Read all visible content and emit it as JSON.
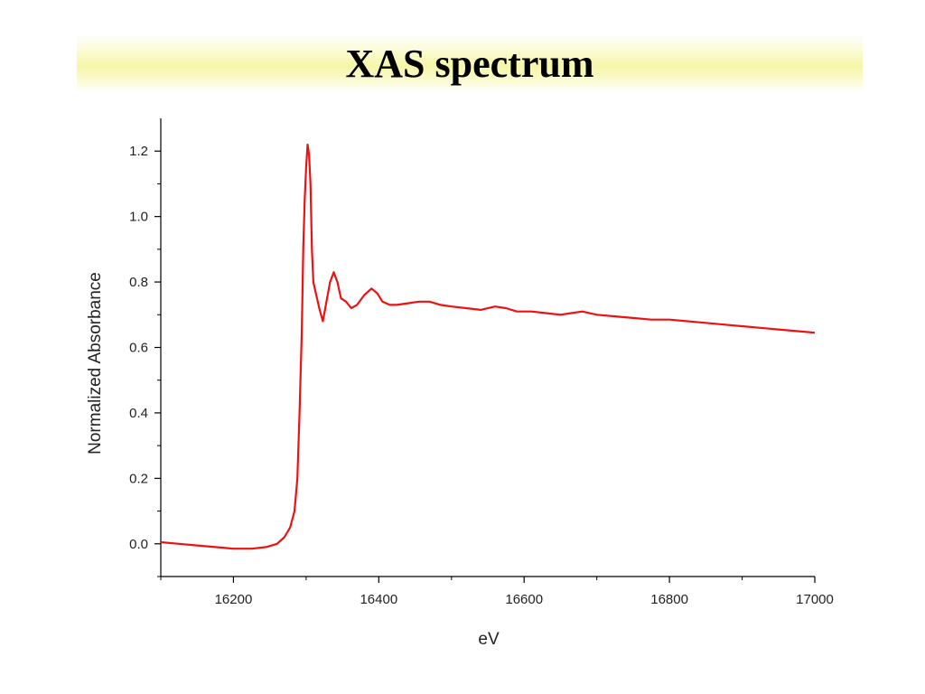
{
  "slide": {
    "title": "XAS spectrum"
  },
  "chart_data": {
    "type": "line",
    "title": "",
    "xlabel": "eV",
    "ylabel": "Normalized Absorbance",
    "xlim": [
      16100,
      17000
    ],
    "ylim": [
      -0.1,
      1.3
    ],
    "x_ticks": [
      16200,
      16400,
      16600,
      16800,
      17000
    ],
    "x_tick_labels": [
      "16200",
      "16400",
      "16600",
      "16800",
      "17000"
    ],
    "y_ticks": [
      0.0,
      0.2,
      0.4,
      0.6,
      0.8,
      1.0,
      1.2
    ],
    "y_tick_labels": [
      "0.0",
      "0.2",
      "0.4",
      "0.6",
      "0.8",
      "1.0",
      "1.2"
    ],
    "grid": false,
    "legend": "none",
    "series": [
      {
        "color": "#ee1111",
        "x": [
          16100,
          16125,
          16150,
          16175,
          16200,
          16225,
          16245,
          16260,
          16270,
          16278,
          16284,
          16288,
          16291,
          16294,
          16296,
          16298,
          16300,
          16302,
          16304,
          16306,
          16308,
          16310,
          16313,
          16318,
          16323,
          16328,
          16333,
          16338,
          16343,
          16348,
          16355,
          16362,
          16370,
          16380,
          16390,
          16398,
          16405,
          16415,
          16425,
          16440,
          16455,
          16470,
          16485,
          16500,
          16520,
          16540,
          16560,
          16575,
          16590,
          16610,
          16630,
          16650,
          16665,
          16680,
          16700,
          16725,
          16750,
          16775,
          16800,
          16825,
          16850,
          16875,
          16900,
          16925,
          16950,
          16975,
          17000
        ],
        "y": [
          0.005,
          0.0,
          -0.005,
          -0.01,
          -0.015,
          -0.015,
          -0.01,
          0.0,
          0.02,
          0.05,
          0.1,
          0.2,
          0.4,
          0.65,
          0.9,
          1.05,
          1.15,
          1.22,
          1.19,
          1.1,
          0.9,
          0.8,
          0.77,
          0.72,
          0.68,
          0.74,
          0.8,
          0.83,
          0.8,
          0.75,
          0.74,
          0.72,
          0.73,
          0.76,
          0.78,
          0.765,
          0.74,
          0.73,
          0.73,
          0.735,
          0.74,
          0.74,
          0.73,
          0.725,
          0.72,
          0.715,
          0.725,
          0.72,
          0.71,
          0.71,
          0.705,
          0.7,
          0.705,
          0.71,
          0.7,
          0.695,
          0.69,
          0.685,
          0.685,
          0.68,
          0.675,
          0.67,
          0.665,
          0.66,
          0.655,
          0.65,
          0.645
        ]
      }
    ]
  }
}
